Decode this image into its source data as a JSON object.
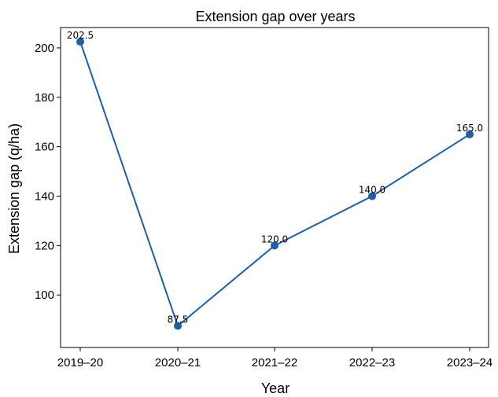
{
  "chart_data": {
    "type": "line",
    "title": "Extension gap over years",
    "xlabel": "Year",
    "ylabel": "Extension gap (q/ha)",
    "categories": [
      "2019–20",
      "2020–21",
      "2021–22",
      "2022–23",
      "2023–24"
    ],
    "values": [
      202.5,
      87.5,
      120.0,
      140.0,
      165.0
    ],
    "data_labels": [
      "202.5",
      "87.5",
      "120.0",
      "140.0",
      "165.0"
    ],
    "yticks": [
      100,
      120,
      140,
      160,
      180,
      200
    ],
    "ylim": [
      78.75,
      208.25
    ],
    "grid": false,
    "line_color": "#1f5ea8",
    "marker": "circle"
  }
}
